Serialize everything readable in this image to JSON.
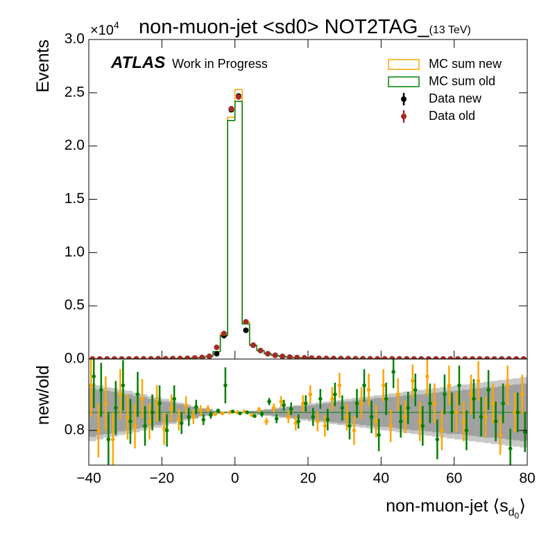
{
  "chart_data": {
    "type": "histogram",
    "title": "non-muon-jet <sd0> NOT2TAG_",
    "energy_label": "(13 TeV)",
    "y_multiplier": "×10",
    "y_multiplier_exp": "4",
    "ylabel": "Events",
    "xlabel": "non-muon-jet ⟨s",
    "xlabel_sub": "d",
    "xlabel_subsub": "0",
    "xlabel_end": "⟩",
    "experiment": "ATLAS",
    "status": "Work in Progress",
    "legend_position": "upper right",
    "bins": [
      -40,
      -38,
      -36,
      -34,
      -32,
      -30,
      -28,
      -26,
      -24,
      -22,
      -20,
      -18,
      -16,
      -14,
      -12,
      -10,
      -8,
      -6,
      -4,
      -2,
      0,
      2,
      4,
      6,
      8,
      10,
      12,
      14,
      16,
      18,
      20,
      22,
      24,
      26,
      28,
      30,
      32,
      34,
      36,
      38,
      40,
      42,
      44,
      46,
      48,
      50,
      52,
      54,
      56,
      58,
      60,
      62,
      64,
      66,
      68,
      70,
      72,
      74,
      76,
      78,
      80
    ],
    "xlim": [
      -40,
      80
    ],
    "xticks": [
      {
        "value": -40,
        "label": "−40"
      },
      {
        "value": -20,
        "label": "−20"
      },
      0,
      20,
      40,
      60,
      80
    ],
    "ylim": [
      0,
      3
    ],
    "yticks": [
      {
        "value": 0,
        "label": "0.0"
      },
      0.5,
      {
        "value": 1,
        "label": "1.0"
      },
      1.5,
      {
        "value": 2,
        "label": "2.0"
      },
      2.5,
      {
        "value": 3,
        "label": "3.0"
      }
    ],
    "series": [
      {
        "name": "MC sum new",
        "style": "step",
        "color": "#ffa500",
        "values": [
          0.001,
          0.001,
          0.001,
          0.001,
          0.001,
          0.001,
          0.002,
          0.002,
          0.002,
          0.003,
          0.003,
          0.004,
          0.005,
          0.007,
          0.01,
          0.015,
          0.025,
          0.07,
          0.24,
          2.27,
          2.53,
          0.35,
          0.13,
          0.08,
          0.05,
          0.035,
          0.025,
          0.018,
          0.014,
          0.011,
          0.009,
          0.007,
          0.006,
          0.005,
          0.004,
          0.004,
          0.003,
          0.003,
          0.002,
          0.002,
          0.002,
          0.002,
          0.002,
          0.002,
          0.001,
          0.001,
          0.001,
          0.001,
          0.001,
          0.001,
          0.001,
          0.001,
          0.001,
          0.001,
          0.001,
          0.001,
          0.001,
          0.001,
          0.001,
          0.001
        ]
      },
      {
        "name": "MC sum old",
        "style": "step",
        "color": "#008000",
        "values": [
          0.001,
          0.001,
          0.001,
          0.001,
          0.001,
          0.001,
          0.002,
          0.002,
          0.002,
          0.003,
          0.003,
          0.004,
          0.005,
          0.007,
          0.01,
          0.015,
          0.025,
          0.07,
          0.22,
          2.24,
          2.42,
          0.33,
          0.13,
          0.08,
          0.05,
          0.035,
          0.025,
          0.018,
          0.014,
          0.011,
          0.009,
          0.007,
          0.006,
          0.005,
          0.004,
          0.004,
          0.003,
          0.003,
          0.002,
          0.002,
          0.002,
          0.002,
          0.002,
          0.002,
          0.001,
          0.001,
          0.001,
          0.001,
          0.001,
          0.001,
          0.001,
          0.001,
          0.001,
          0.001,
          0.001,
          0.001,
          0.001,
          0.001,
          0.001,
          0.001
        ]
      },
      {
        "name": "Data new",
        "style": "points",
        "color": "#000000",
        "values": [
          0.001,
          0.001,
          0.001,
          0.001,
          0.001,
          0.001,
          0.002,
          0.002,
          0.002,
          0.003,
          0.003,
          0.004,
          0.005,
          0.007,
          0.01,
          0.015,
          0.025,
          0.05,
          0.22,
          2.34,
          2.47,
          0.27,
          0.13,
          0.08,
          0.05,
          0.035,
          0.025,
          0.018,
          0.014,
          0.011,
          0.009,
          0.007,
          0.006,
          0.005,
          0.004,
          0.004,
          0.003,
          0.003,
          0.002,
          0.002,
          0.002,
          0.002,
          0.002,
          0.002,
          0.001,
          0.001,
          0.001,
          0.001,
          0.001,
          0.001,
          0.001,
          0.001,
          0.001,
          0.001,
          0.001,
          0.001,
          0.001,
          0.001,
          0.001,
          0.001
        ]
      },
      {
        "name": "Data old",
        "style": "points",
        "color": "#a52a2a",
        "values": [
          0.001,
          0.001,
          0.001,
          0.001,
          0.001,
          0.001,
          0.002,
          0.002,
          0.002,
          0.003,
          0.003,
          0.004,
          0.005,
          0.007,
          0.01,
          0.015,
          0.025,
          0.11,
          0.24,
          2.35,
          2.46,
          0.35,
          0.13,
          0.08,
          0.05,
          0.035,
          0.025,
          0.018,
          0.014,
          0.011,
          0.009,
          0.007,
          0.006,
          0.005,
          0.004,
          0.004,
          0.003,
          0.003,
          0.002,
          0.002,
          0.002,
          0.002,
          0.002,
          0.002,
          0.001,
          0.001,
          0.001,
          0.001,
          0.001,
          0.001,
          0.001,
          0.001,
          0.001,
          0.001,
          0.001,
          0.001,
          0.001,
          0.001,
          0.001,
          0.001
        ]
      }
    ],
    "ratio": {
      "ylabel": "new/old",
      "ylim": [
        0.415,
        1.592
      ],
      "yticks": [
        0.8
      ],
      "reference_line": 1,
      "reference_color": "#008000",
      "bands": [
        {
          "color": "#c8c8c8",
          "errors": [
            0.32,
            0.3,
            0.28,
            0.27,
            0.25,
            0.24,
            0.22,
            0.2,
            0.18,
            0.17,
            0.15,
            0.13,
            0.11,
            0.09,
            0.07,
            0.05,
            0.04,
            0.02,
            0.01,
            0.005,
            0.005,
            0.01,
            0.02,
            0.03,
            0.04,
            0.05,
            0.06,
            0.07,
            0.08,
            0.09,
            0.1,
            0.11,
            0.12,
            0.13,
            0.14,
            0.15,
            0.16,
            0.17,
            0.18,
            0.19,
            0.2,
            0.21,
            0.22,
            0.23,
            0.24,
            0.25,
            0.26,
            0.27,
            0.28,
            0.29,
            0.3,
            0.31,
            0.32,
            0.33,
            0.34,
            0.35,
            0.36,
            0.37,
            0.38,
            0.39
          ]
        },
        {
          "color": "#a0a0a0",
          "errors": [
            0.27,
            0.25,
            0.24,
            0.23,
            0.21,
            0.2,
            0.18,
            0.17,
            0.15,
            0.14,
            0.12,
            0.11,
            0.09,
            0.07,
            0.06,
            0.04,
            0.03,
            0.015,
            0.008,
            0.004,
            0.004,
            0.008,
            0.015,
            0.025,
            0.03,
            0.04,
            0.05,
            0.06,
            0.07,
            0.07,
            0.08,
            0.09,
            0.1,
            0.11,
            0.12,
            0.12,
            0.13,
            0.14,
            0.15,
            0.16,
            0.16,
            0.17,
            0.18,
            0.19,
            0.2,
            0.2,
            0.21,
            0.22,
            0.23,
            0.24,
            0.24,
            0.25,
            0.26,
            0.27,
            0.28,
            0.28,
            0.29,
            0.3,
            0.31,
            0.32
          ]
        }
      ],
      "series": [
        {
          "color": "#ffa500",
          "values": [
            1.3,
            0.8,
            1.1,
            0.7,
            1.2,
            0.95,
            0.85,
            1.15,
            0.9,
            1.1,
            0.82,
            1.05,
            0.92,
            1.08,
            0.95,
            1.02,
            1.04,
            0.98,
            0.99,
            1.0,
            1.0,
            1.01,
            0.97,
            1.03,
            0.9,
            1.05,
            1.12,
            0.95,
            0.88,
            1.1,
            1.2,
            0.9,
            0.85,
            1.15,
            1.3,
            0.95,
            0.8,
            1.1,
            1.25,
            0.9,
            1.3,
            0.85,
            1.2,
            0.95,
            1.35,
            0.9,
            1.4,
            1.1,
            0.8,
            1.3,
            1.0,
            0.9,
            1.2,
            1.35,
            0.95,
            1.1,
            0.75,
            1.3,
            1.0,
            1.2
          ],
          "errors": [
            0.35,
            0.3,
            0.3,
            0.3,
            0.28,
            0.25,
            0.25,
            0.22,
            0.2,
            0.2,
            0.18,
            0.15,
            0.12,
            0.1,
            0.08,
            0.06,
            0.04,
            0.02,
            0.01,
            0.005,
            0.005,
            0.01,
            0.02,
            0.03,
            0.04,
            0.05,
            0.06,
            0.07,
            0.08,
            0.09,
            0.1,
            0.11,
            0.12,
            0.13,
            0.14,
            0.15,
            0.16,
            0.18,
            0.18,
            0.18,
            0.18,
            0.18,
            0.18,
            0.18,
            0.18,
            0.22,
            0.22,
            0.22,
            0.22,
            0.22,
            0.22,
            0.22,
            0.22,
            0.22,
            0.22,
            0.22,
            0.22,
            0.22,
            0.22,
            0.22
          ]
        },
        {
          "color": "#008000",
          "values": [
            1.4,
            1.25,
            0.7,
            1.05,
            1.3,
            0.9,
            1.2,
            0.85,
            1.0,
            1.1,
            0.8,
            1.15,
            0.88,
            0.95,
            1.06,
            0.92,
            0.97,
            1.02,
            1.3,
            1.01,
            0.99,
            1.0,
            0.96,
            0.98,
            1.12,
            0.93,
            1.08,
            1.04,
            0.9,
            1.1,
            0.95,
            1.15,
            0.92,
            1.2,
            1.05,
            0.85,
            1.1,
            1.3,
            0.95,
            0.75,
            1.15,
            1.45,
            0.9,
            1.05,
            1.25,
            0.85,
            1.1,
            0.7,
            1.2,
            1.0,
            1.3,
            0.8,
            1.15,
            0.95,
            1.25,
            0.9,
            1.1,
            0.6,
            1.0,
            0.78
          ],
          "errors": [
            0.35,
            0.3,
            0.3,
            0.3,
            0.28,
            0.25,
            0.25,
            0.22,
            0.2,
            0.2,
            0.18,
            0.15,
            0.12,
            0.1,
            0.08,
            0.06,
            0.04,
            0.02,
            0.2,
            0.005,
            0.005,
            0.01,
            0.02,
            0.03,
            0.04,
            0.05,
            0.06,
            0.07,
            0.08,
            0.09,
            0.1,
            0.11,
            0.12,
            0.13,
            0.14,
            0.15,
            0.16,
            0.18,
            0.18,
            0.18,
            0.18,
            0.18,
            0.18,
            0.18,
            0.18,
            0.22,
            0.22,
            0.22,
            0.22,
            0.22,
            0.22,
            0.22,
            0.22,
            0.22,
            0.22,
            0.22,
            0.22,
            0.22,
            0.22,
            0.22
          ]
        }
      ]
    }
  }
}
